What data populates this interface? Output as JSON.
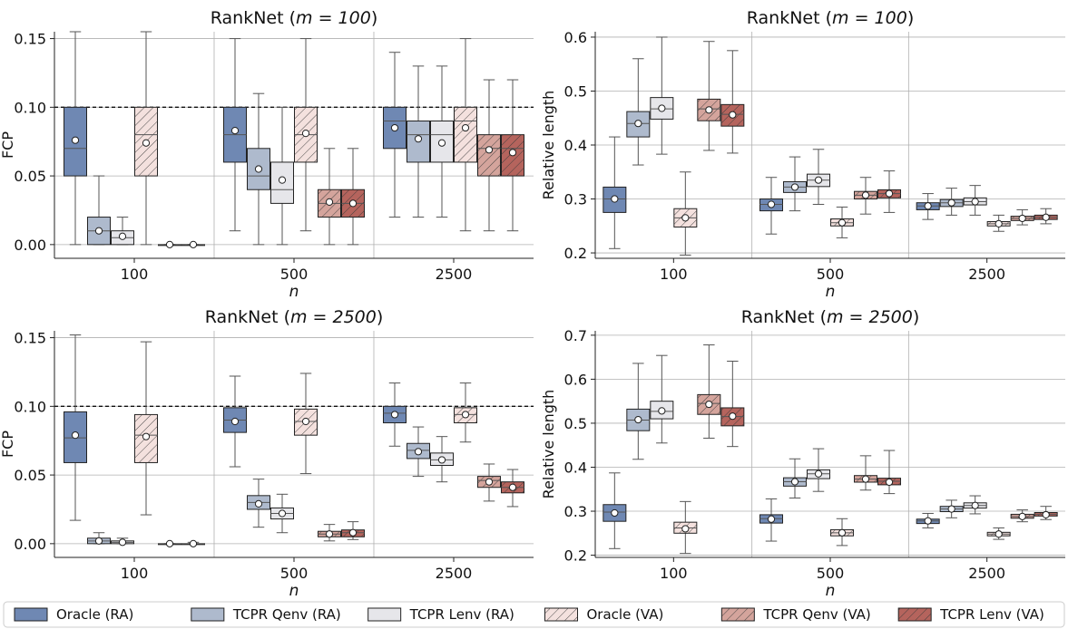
{
  "legend": {
    "placement": "bottom",
    "items": [
      {
        "label": "Oracle (RA)",
        "color": "#6f88b3",
        "hatch": false
      },
      {
        "label": "TCPR Qenv (RA)",
        "color": "#aebacd",
        "hatch": false
      },
      {
        "label": "TCPR Lenv (RA)",
        "color": "#e6e6ea",
        "hatch": false
      },
      {
        "label": "Oracle (VA)",
        "color": "#f4e1de",
        "hatch": true
      },
      {
        "label": "TCPR Qenv (VA)",
        "color": "#d4a49c",
        "hatch": true
      },
      {
        "label": "TCPR Lenv (VA)",
        "color": "#b5645d",
        "hatch": true
      }
    ]
  },
  "chart_data": [
    {
      "type": "box",
      "title_prefix": "RankNet (",
      "title_math": "m = 100",
      "title_suffix": ")",
      "xlabel": "n",
      "ylabel": "FCP",
      "categories": [
        "100",
        "500",
        "2500"
      ],
      "ylim": [
        -0.01,
        0.155
      ],
      "yticks": [
        "0.00",
        "0.05",
        "0.10",
        "0.15"
      ],
      "ytick_values": [
        0,
        0.05,
        0.1,
        0.15
      ],
      "reference_line": 0.1,
      "grid": true,
      "series": [
        {
          "name": "Oracle (RA)",
          "boxes": [
            {
              "whislo": 0,
              "q1": 0.05,
              "med": 0.07,
              "q3": 0.1,
              "whishi": 0.155,
              "mean": 0.076
            },
            {
              "whislo": 0.01,
              "q1": 0.06,
              "med": 0.08,
              "q3": 0.1,
              "whishi": 0.15,
              "mean": 0.083
            },
            {
              "whislo": 0.02,
              "q1": 0.07,
              "med": 0.09,
              "q3": 0.1,
              "whishi": 0.14,
              "mean": 0.085
            }
          ]
        },
        {
          "name": "TCPR Qenv (RA)",
          "boxes": [
            {
              "whislo": 0,
              "q1": 0,
              "med": 0.01,
              "q3": 0.02,
              "whishi": 0.05,
              "mean": 0.01
            },
            {
              "whislo": 0,
              "q1": 0.04,
              "med": 0.05,
              "q3": 0.07,
              "whishi": 0.11,
              "mean": 0.055
            },
            {
              "whislo": 0.02,
              "q1": 0.06,
              "med": 0.08,
              "q3": 0.09,
              "whishi": 0.13,
              "mean": 0.077
            }
          ]
        },
        {
          "name": "TCPR Lenv (RA)",
          "boxes": [
            {
              "whislo": 0,
              "q1": 0,
              "med": 0.005,
              "q3": 0.01,
              "whishi": 0.02,
              "mean": 0.006
            },
            {
              "whislo": 0,
              "q1": 0.03,
              "med": 0.04,
              "q3": 0.06,
              "whishi": 0.1,
              "mean": 0.047
            },
            {
              "whislo": 0.02,
              "q1": 0.06,
              "med": 0.08,
              "q3": 0.09,
              "whishi": 0.13,
              "mean": 0.074
            }
          ]
        },
        {
          "name": "Oracle (VA)",
          "boxes": [
            {
              "whislo": 0,
              "q1": 0.05,
              "med": 0.08,
              "q3": 0.1,
              "whishi": 0.155,
              "mean": 0.074
            },
            {
              "whislo": 0.01,
              "q1": 0.06,
              "med": 0.08,
              "q3": 0.1,
              "whishi": 0.15,
              "mean": 0.081
            },
            {
              "whislo": 0.01,
              "q1": 0.06,
              "med": 0.09,
              "q3": 0.1,
              "whishi": 0.15,
              "mean": 0.085
            }
          ]
        },
        {
          "name": "TCPR Qenv (VA)",
          "boxes": [
            {
              "whislo": 0,
              "q1": 0,
              "med": 0,
              "q3": 0,
              "whishi": 0,
              "mean": 0
            },
            {
              "whislo": 0,
              "q1": 0.02,
              "med": 0.03,
              "q3": 0.04,
              "whishi": 0.07,
              "mean": 0.031
            },
            {
              "whislo": 0.01,
              "q1": 0.05,
              "med": 0.07,
              "q3": 0.08,
              "whishi": 0.12,
              "mean": 0.069
            }
          ]
        },
        {
          "name": "TCPR Lenv (VA)",
          "boxes": [
            {
              "whislo": 0,
              "q1": 0,
              "med": 0,
              "q3": 0,
              "whishi": 0,
              "mean": 0
            },
            {
              "whislo": 0,
              "q1": 0.02,
              "med": 0.03,
              "q3": 0.04,
              "whishi": 0.07,
              "mean": 0.03
            },
            {
              "whislo": 0.01,
              "q1": 0.05,
              "med": 0.07,
              "q3": 0.08,
              "whishi": 0.12,
              "mean": 0.067
            }
          ]
        }
      ]
    },
    {
      "type": "box",
      "title_prefix": "RankNet (",
      "title_math": "m = 100",
      "title_suffix": ")",
      "xlabel": "n",
      "ylabel": "Relative length",
      "categories": [
        "100",
        "500",
        "2500"
      ],
      "ylim": [
        0.19,
        0.61
      ],
      "yticks": [
        "0.2",
        "0.3",
        "0.4",
        "0.5",
        "0.6"
      ],
      "ytick_values": [
        0.2,
        0.3,
        0.4,
        0.5,
        0.6
      ],
      "reference_line": null,
      "grid": true,
      "series": [
        {
          "name": "Oracle (RA)",
          "boxes": [
            {
              "whislo": 0.208,
              "q1": 0.275,
              "med": 0.3,
              "q3": 0.322,
              "whishi": 0.415,
              "mean": 0.3
            },
            {
              "whislo": 0.235,
              "q1": 0.278,
              "med": 0.29,
              "q3": 0.3,
              "whishi": 0.34,
              "mean": 0.29
            },
            {
              "whislo": 0.262,
              "q1": 0.28,
              "med": 0.287,
              "q3": 0.293,
              "whishi": 0.31,
              "mean": 0.287
            }
          ]
        },
        {
          "name": "TCPR Qenv (RA)",
          "boxes": [
            {
              "whislo": 0.363,
              "q1": 0.415,
              "med": 0.44,
              "q3": 0.462,
              "whishi": 0.56,
              "mean": 0.44
            },
            {
              "whislo": 0.278,
              "q1": 0.312,
              "med": 0.322,
              "q3": 0.332,
              "whishi": 0.378,
              "mean": 0.322
            },
            {
              "whislo": 0.27,
              "q1": 0.286,
              "med": 0.293,
              "q3": 0.299,
              "whishi": 0.32,
              "mean": 0.293
            }
          ]
        },
        {
          "name": "TCPR Lenv (RA)",
          "boxes": [
            {
              "whislo": 0.383,
              "q1": 0.448,
              "med": 0.467,
              "q3": 0.488,
              "whishi": 0.6,
              "mean": 0.468
            },
            {
              "whislo": 0.29,
              "q1": 0.323,
              "med": 0.335,
              "q3": 0.346,
              "whishi": 0.392,
              "mean": 0.335
            },
            {
              "whislo": 0.27,
              "q1": 0.289,
              "med": 0.295,
              "q3": 0.302,
              "whishi": 0.325,
              "mean": 0.295
            }
          ]
        },
        {
          "name": "Oracle (VA)",
          "boxes": [
            {
              "whislo": 0.196,
              "q1": 0.248,
              "med": 0.265,
              "q3": 0.282,
              "whishi": 0.35,
              "mean": 0.265
            },
            {
              "whislo": 0.228,
              "q1": 0.25,
              "med": 0.256,
              "q3": 0.263,
              "whishi": 0.285,
              "mean": 0.256
            },
            {
              "whislo": 0.24,
              "q1": 0.25,
              "med": 0.254,
              "q3": 0.258,
              "whishi": 0.27,
              "mean": 0.254
            }
          ]
        },
        {
          "name": "TCPR Qenv (VA)",
          "boxes": [
            {
              "whislo": 0.39,
              "q1": 0.445,
              "med": 0.467,
              "q3": 0.485,
              "whishi": 0.592,
              "mean": 0.465
            },
            {
              "whislo": 0.272,
              "q1": 0.3,
              "med": 0.307,
              "q3": 0.314,
              "whishi": 0.34,
              "mean": 0.307
            },
            {
              "whislo": 0.252,
              "q1": 0.26,
              "med": 0.264,
              "q3": 0.268,
              "whishi": 0.28,
              "mean": 0.264
            }
          ]
        },
        {
          "name": "TCPR Lenv (VA)",
          "boxes": [
            {
              "whislo": 0.385,
              "q1": 0.435,
              "med": 0.457,
              "q3": 0.475,
              "whishi": 0.575,
              "mean": 0.456
            },
            {
              "whislo": 0.275,
              "q1": 0.302,
              "med": 0.31,
              "q3": 0.317,
              "whishi": 0.352,
              "mean": 0.31
            },
            {
              "whislo": 0.254,
              "q1": 0.262,
              "med": 0.266,
              "q3": 0.27,
              "whishi": 0.282,
              "mean": 0.266
            }
          ]
        }
      ]
    },
    {
      "type": "box",
      "title_prefix": "RankNet (",
      "title_math": "m = 2500",
      "title_suffix": ")",
      "xlabel": "n",
      "ylabel": "FCP",
      "categories": [
        "100",
        "500",
        "2500"
      ],
      "ylim": [
        -0.01,
        0.155
      ],
      "yticks": [
        "0.00",
        "0.05",
        "0.10",
        "0.15"
      ],
      "ytick_values": [
        0,
        0.05,
        0.1,
        0.15
      ],
      "reference_line": 0.1,
      "grid": true,
      "series": [
        {
          "name": "Oracle (RA)",
          "boxes": [
            {
              "whislo": 0.017,
              "q1": 0.059,
              "med": 0.077,
              "q3": 0.096,
              "whishi": 0.152,
              "mean": 0.079
            },
            {
              "whislo": 0.056,
              "q1": 0.081,
              "med": 0.09,
              "q3": 0.099,
              "whishi": 0.122,
              "mean": 0.089
            },
            {
              "whislo": 0.071,
              "q1": 0.088,
              "med": 0.095,
              "q3": 0.1,
              "whishi": 0.117,
              "mean": 0.094
            }
          ]
        },
        {
          "name": "TCPR Qenv (RA)",
          "boxes": [
            {
              "whislo": 0,
              "q1": 0,
              "med": 0.002,
              "q3": 0.004,
              "whishi": 0.008,
              "mean": 0.002
            },
            {
              "whislo": 0.012,
              "q1": 0.025,
              "med": 0.03,
              "q3": 0.035,
              "whishi": 0.047,
              "mean": 0.029
            },
            {
              "whislo": 0.049,
              "q1": 0.062,
              "med": 0.068,
              "q3": 0.073,
              "whishi": 0.085,
              "mean": 0.067
            }
          ]
        },
        {
          "name": "TCPR Lenv (RA)",
          "boxes": [
            {
              "whislo": 0,
              "q1": 0,
              "med": 0.001,
              "q3": 0.002,
              "whishi": 0.004,
              "mean": 0.001
            },
            {
              "whislo": 0.008,
              "q1": 0.018,
              "med": 0.022,
              "q3": 0.026,
              "whishi": 0.036,
              "mean": 0.022
            },
            {
              "whislo": 0.045,
              "q1": 0.057,
              "med": 0.061,
              "q3": 0.066,
              "whishi": 0.078,
              "mean": 0.061
            }
          ]
        },
        {
          "name": "Oracle (VA)",
          "boxes": [
            {
              "whislo": 0.021,
              "q1": 0.059,
              "med": 0.079,
              "q3": 0.094,
              "whishi": 0.147,
              "mean": 0.078
            },
            {
              "whislo": 0.051,
              "q1": 0.079,
              "med": 0.089,
              "q3": 0.098,
              "whishi": 0.124,
              "mean": 0.089
            },
            {
              "whislo": 0.074,
              "q1": 0.088,
              "med": 0.094,
              "q3": 0.099,
              "whishi": 0.117,
              "mean": 0.094
            }
          ]
        },
        {
          "name": "TCPR Qenv (VA)",
          "boxes": [
            {
              "whislo": 0,
              "q1": 0,
              "med": 0,
              "q3": 0,
              "whishi": 0,
              "mean": 0
            },
            {
              "whislo": 0.002,
              "q1": 0.005,
              "med": 0.007,
              "q3": 0.009,
              "whishi": 0.014,
              "mean": 0.007
            },
            {
              "whislo": 0.031,
              "q1": 0.041,
              "med": 0.046,
              "q3": 0.049,
              "whishi": 0.058,
              "mean": 0.045
            }
          ]
        },
        {
          "name": "TCPR Lenv (VA)",
          "boxes": [
            {
              "whislo": 0,
              "q1": 0,
              "med": 0,
              "q3": 0,
              "whishi": 0.001,
              "mean": 0
            },
            {
              "whislo": 0.003,
              "q1": 0.005,
              "med": 0.008,
              "q3": 0.01,
              "whishi": 0.016,
              "mean": 0.008
            },
            {
              "whislo": 0.027,
              "q1": 0.037,
              "med": 0.041,
              "q3": 0.045,
              "whishi": 0.054,
              "mean": 0.041
            }
          ]
        }
      ]
    },
    {
      "type": "box",
      "title_prefix": "RankNet (",
      "title_math": "m = 2500",
      "title_suffix": ")",
      "xlabel": "n",
      "ylabel": "Relative length",
      "categories": [
        "100",
        "500",
        "2500"
      ],
      "ylim": [
        0.195,
        0.71
      ],
      "yticks": [
        "0.2",
        "0.3",
        "0.4",
        "0.5",
        "0.6",
        "0.7"
      ],
      "ytick_values": [
        0.2,
        0.3,
        0.4,
        0.5,
        0.6,
        0.7
      ],
      "reference_line": null,
      "grid": true,
      "series": [
        {
          "name": "Oracle (RA)",
          "boxes": [
            {
              "whislo": 0.215,
              "q1": 0.277,
              "med": 0.298,
              "q3": 0.315,
              "whishi": 0.387,
              "mean": 0.296
            },
            {
              "whislo": 0.232,
              "q1": 0.273,
              "med": 0.283,
              "q3": 0.292,
              "whishi": 0.328,
              "mean": 0.282
            },
            {
              "whislo": 0.262,
              "q1": 0.272,
              "med": 0.278,
              "q3": 0.282,
              "whishi": 0.295,
              "mean": 0.278
            }
          ]
        },
        {
          "name": "TCPR Qenv (RA)",
          "boxes": [
            {
              "whislo": 0.418,
              "q1": 0.483,
              "med": 0.507,
              "q3": 0.532,
              "whishi": 0.636,
              "mean": 0.508
            },
            {
              "whislo": 0.33,
              "q1": 0.357,
              "med": 0.367,
              "q3": 0.376,
              "whishi": 0.419,
              "mean": 0.367
            },
            {
              "whislo": 0.285,
              "q1": 0.299,
              "med": 0.305,
              "q3": 0.311,
              "whishi": 0.325,
              "mean": 0.305
            }
          ]
        },
        {
          "name": "TCPR Lenv (RA)",
          "boxes": [
            {
              "whislo": 0.455,
              "q1": 0.51,
              "med": 0.527,
              "q3": 0.55,
              "whishi": 0.654,
              "mean": 0.528
            },
            {
              "whislo": 0.345,
              "q1": 0.374,
              "med": 0.385,
              "q3": 0.394,
              "whishi": 0.442,
              "mean": 0.385
            },
            {
              "whislo": 0.294,
              "q1": 0.307,
              "med": 0.313,
              "q3": 0.319,
              "whishi": 0.335,
              "mean": 0.313
            }
          ]
        },
        {
          "name": "Oracle (VA)",
          "boxes": [
            {
              "whislo": 0.204,
              "q1": 0.25,
              "med": 0.262,
              "q3": 0.275,
              "whishi": 0.322,
              "mean": 0.26
            },
            {
              "whislo": 0.222,
              "q1": 0.244,
              "med": 0.251,
              "q3": 0.258,
              "whishi": 0.283,
              "mean": 0.251
            },
            {
              "whislo": 0.236,
              "q1": 0.244,
              "med": 0.248,
              "q3": 0.252,
              "whishi": 0.262,
              "mean": 0.248
            }
          ]
        },
        {
          "name": "TCPR Qenv (VA)",
          "boxes": [
            {
              "whislo": 0.466,
              "q1": 0.52,
              "med": 0.545,
              "q3": 0.565,
              "whishi": 0.678,
              "mean": 0.543
            },
            {
              "whislo": 0.348,
              "q1": 0.366,
              "med": 0.373,
              "q3": 0.381,
              "whishi": 0.426,
              "mean": 0.373
            },
            {
              "whislo": 0.276,
              "q1": 0.284,
              "med": 0.288,
              "q3": 0.293,
              "whishi": 0.303,
              "mean": 0.288
            }
          ]
        },
        {
          "name": "TCPR Lenv (VA)",
          "boxes": [
            {
              "whislo": 0.447,
              "q1": 0.494,
              "med": 0.515,
              "q3": 0.535,
              "whishi": 0.641,
              "mean": 0.516
            },
            {
              "whislo": 0.34,
              "q1": 0.36,
              "med": 0.368,
              "q3": 0.375,
              "whishi": 0.438,
              "mean": 0.366
            },
            {
              "whislo": 0.281,
              "q1": 0.289,
              "med": 0.293,
              "q3": 0.297,
              "whishi": 0.311,
              "mean": 0.292
            }
          ]
        }
      ]
    }
  ]
}
